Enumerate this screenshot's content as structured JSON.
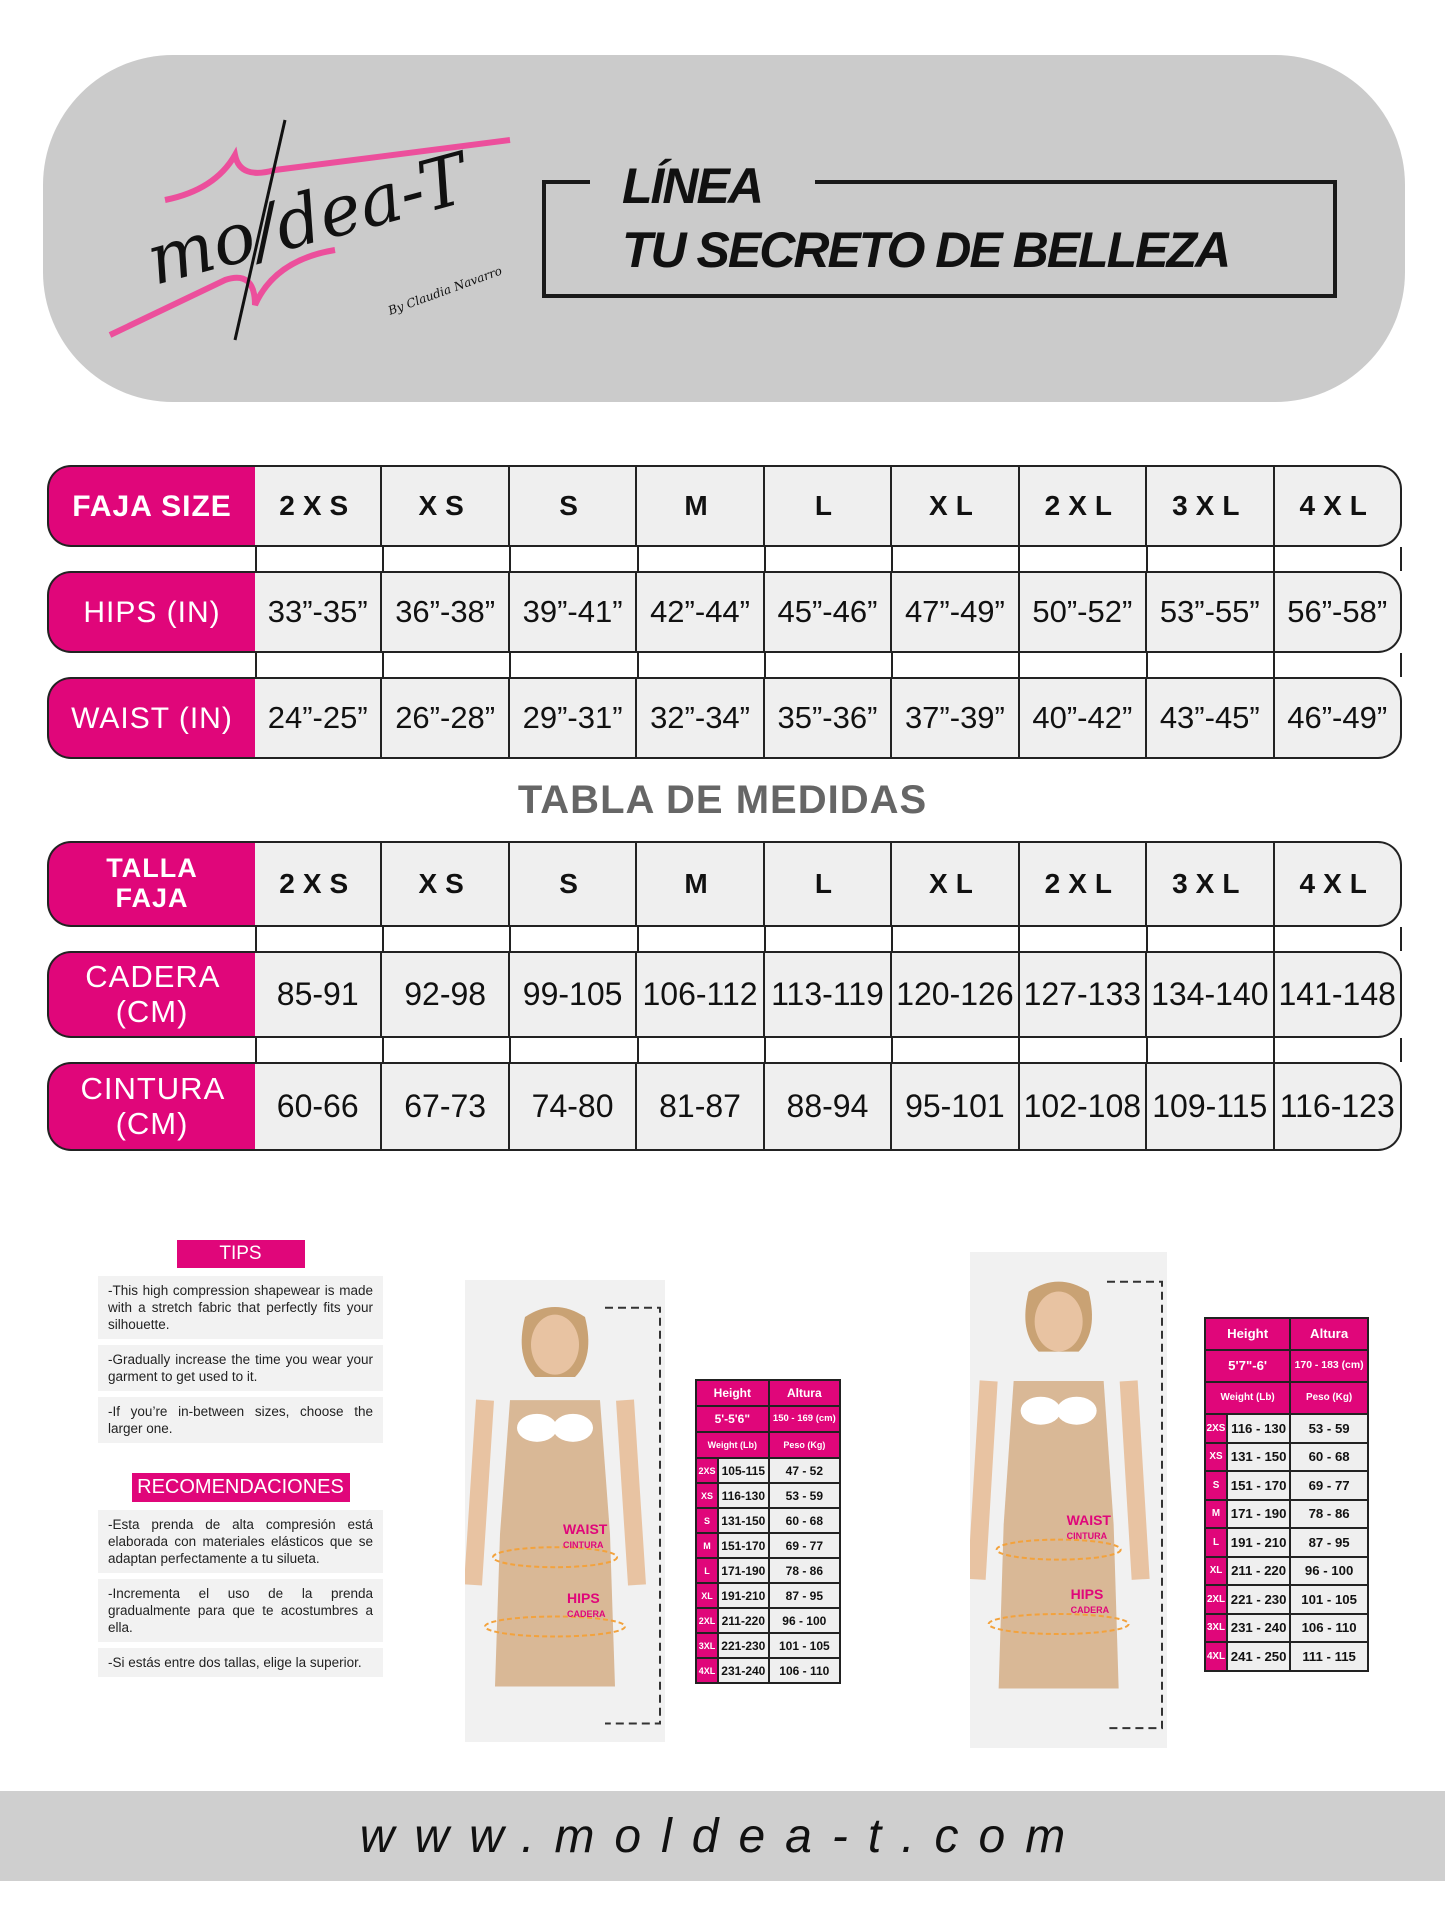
{
  "header": {
    "logo_text": "moldea-T",
    "logo_byline": "By Claudia Navarro",
    "line1": "LÍNEA",
    "line2": "TU SECRETO DE BELLEZA",
    "accent": "#e0067a"
  },
  "sizes": [
    "2XS",
    "XS",
    "S",
    "M",
    "L",
    "XL",
    "2XL",
    "3XL",
    "4XL"
  ],
  "table_in": {
    "rows": [
      {
        "label": "FAJA SIZE",
        "kind": "size"
      },
      {
        "label": "HIPS (IN)",
        "values": [
          "33”-35”",
          "36”-38”",
          "39”-41”",
          "42”-44”",
          "45”-46”",
          "47”-49”",
          "50”-52”",
          "53”-55”",
          "56”-58”"
        ]
      },
      {
        "label": "WAIST (IN)",
        "values": [
          "24”-25”",
          "26”-28”",
          "29”-31”",
          "32”-34”",
          "35”-36”",
          "37”-39”",
          "40”-42”",
          "43”-45”",
          "46”-49”"
        ]
      }
    ]
  },
  "title": "TABLA DE MEDIDAS",
  "table_cm": {
    "rows": [
      {
        "label": "TALLA FAJA",
        "kind": "size"
      },
      {
        "label": "CADERA (CM)",
        "values": [
          "85-91",
          "92-98",
          "99-105",
          "106-112",
          "113-119",
          "120-126",
          "127-133",
          "134-140",
          "141-148"
        ]
      },
      {
        "label": "CINTURA (CM)",
        "values": [
          "60-66",
          "67-73",
          "74-80",
          "81-87",
          "88-94",
          "95-101",
          "102-108",
          "109-115",
          "116-123"
        ]
      }
    ]
  },
  "tips": {
    "title": "TIPS",
    "items": [
      "-This high compression shapewear is made with a stretch fabric that perfectly fits your silhouette.",
      "-Gradually increase the time you wear your garment to get used to it.",
      "-If you’re in-between sizes, choose the larger one."
    ]
  },
  "recs": {
    "title": "RECOMENDACIONES",
    "items": [
      "-Esta prenda de alta compresión está elaborada con materiales elásticos que se adaptan perfectamente a tu silueta.",
      "-Incrementa el uso de la prenda gradualmente para que te acostumbres a ella.",
      "-Si estás entre dos tallas, elige la superior."
    ]
  },
  "photo_labels": {
    "waist": "WAIST",
    "cintura": "CINTURA",
    "hips": "HIPS",
    "cadera": "CADERA"
  },
  "weight_tables": [
    {
      "height": "Height",
      "altura": "Altura",
      "height_val": "5'-5'6\"",
      "altura_val": "150 - 169 (cm)",
      "weight": "Weight (Lb)",
      "peso": "Peso (Kg)",
      "rows": [
        [
          "2XS",
          "105-115",
          "47 - 52"
        ],
        [
          "XS",
          "116-130",
          "53 - 59"
        ],
        [
          "S",
          "131-150",
          "60 - 68"
        ],
        [
          "M",
          "151-170",
          "69 - 77"
        ],
        [
          "L",
          "171-190",
          "78 - 86"
        ],
        [
          "XL",
          "191-210",
          "87 - 95"
        ],
        [
          "2XL",
          "211-220",
          "96 - 100"
        ],
        [
          "3XL",
          "221-230",
          "101 - 105"
        ],
        [
          "4XL",
          "231-240",
          "106 - 110"
        ]
      ]
    },
    {
      "height": "Height",
      "altura": "Altura",
      "height_val": "5'7\"-6'",
      "altura_val": "170 - 183 (cm)",
      "weight": "Weight (Lb)",
      "peso": "Peso (Kg)",
      "rows": [
        [
          "2XS",
          "116 - 130",
          "53 - 59"
        ],
        [
          "XS",
          "131 - 150",
          "60 - 68"
        ],
        [
          "S",
          "151 - 170",
          "69 - 77"
        ],
        [
          "M",
          "171 - 190",
          "78 - 86"
        ],
        [
          "L",
          "191 - 210",
          "87 - 95"
        ],
        [
          "XL",
          "211 - 220",
          "96 - 100"
        ],
        [
          "2XL",
          "221 - 230",
          "101 - 105"
        ],
        [
          "3XL",
          "231 - 240",
          "106 - 110"
        ],
        [
          "4XL",
          "241 - 250",
          "111 - 115"
        ]
      ]
    }
  ],
  "footer": {
    "url": "www.moldea-t.com"
  }
}
